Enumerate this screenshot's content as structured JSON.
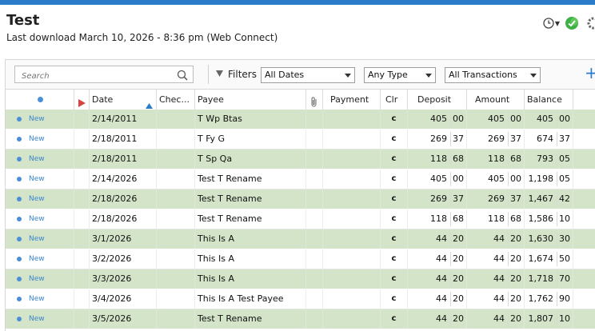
{
  "header": {
    "title": "Test",
    "subtitle": "Last download March 10, 2026 - 8:36 pm (Web Connect)"
  },
  "icons": {
    "history": "clock-icon",
    "sync": "sync-check-icon",
    "settings": "gear-icon"
  },
  "toolbar": {
    "search_placeholder": "Search",
    "filters_label": "Filters",
    "date_filter": "All Dates",
    "type_filter": "Any Type",
    "txn_filter": "All Transactions",
    "add_label": "+"
  },
  "columns": {
    "date": "Date",
    "check": "Chec...",
    "payee": "Payee",
    "payment": "Payment",
    "clr": "Clr",
    "deposit": "Deposit",
    "amount": "Amount",
    "balance": "Balance"
  },
  "rows": [
    {
      "status": "New",
      "date": "2/14/2011",
      "payee": "T Wp Btas",
      "clr": "c",
      "deposit": "405",
      "deposit_c": "00",
      "amount": "405",
      "amount_c": "00",
      "balance": "405",
      "balance_c": "00"
    },
    {
      "status": "New",
      "date": "2/18/2011",
      "payee": "T Fy G",
      "clr": "c",
      "deposit": "269",
      "deposit_c": "37",
      "amount": "269",
      "amount_c": "37",
      "balance": "674",
      "balance_c": "37"
    },
    {
      "status": "New",
      "date": "2/18/2011",
      "payee": "T Sp Qa",
      "clr": "c",
      "deposit": "118",
      "deposit_c": "68",
      "amount": "118",
      "amount_c": "68",
      "balance": "793",
      "balance_c": "05"
    },
    {
      "status": "New",
      "date": "2/14/2026",
      "payee": "Test T Rename",
      "clr": "c",
      "deposit": "405",
      "deposit_c": "00",
      "amount": "405",
      "amount_c": "00",
      "balance": "1,198",
      "balance_c": "05"
    },
    {
      "status": "New",
      "date": "2/18/2026",
      "payee": "Test T Rename",
      "clr": "c",
      "deposit": "269",
      "deposit_c": "37",
      "amount": "269",
      "amount_c": "37",
      "balance": "1,467",
      "balance_c": "42"
    },
    {
      "status": "New",
      "date": "2/18/2026",
      "payee": "Test T Rename",
      "clr": "c",
      "deposit": "118",
      "deposit_c": "68",
      "amount": "118",
      "amount_c": "68",
      "balance": "1,586",
      "balance_c": "10"
    },
    {
      "status": "New",
      "date": "3/1/2026",
      "payee": "This Is A",
      "clr": "c",
      "deposit": "44",
      "deposit_c": "20",
      "amount": "44",
      "amount_c": "20",
      "balance": "1,630",
      "balance_c": "30"
    },
    {
      "status": "New",
      "date": "3/2/2026",
      "payee": "This Is A",
      "clr": "c",
      "deposit": "44",
      "deposit_c": "20",
      "amount": "44",
      "amount_c": "20",
      "balance": "1,674",
      "balance_c": "50"
    },
    {
      "status": "New",
      "date": "3/3/2026",
      "payee": "This Is A",
      "clr": "c",
      "deposit": "44",
      "deposit_c": "20",
      "amount": "44",
      "amount_c": "20",
      "balance": "1,718",
      "balance_c": "70"
    },
    {
      "status": "New",
      "date": "3/4/2026",
      "payee": "This Is A Test Payee",
      "clr": "c",
      "deposit": "44",
      "deposit_c": "20",
      "amount": "44",
      "amount_c": "20",
      "balance": "1,762",
      "balance_c": "90"
    },
    {
      "status": "New",
      "date": "3/5/2026",
      "payee": "Test T Rename",
      "clr": "c",
      "deposit": "44",
      "deposit_c": "20",
      "amount": "44",
      "amount_c": "20",
      "balance": "1,807",
      "balance_c": "10"
    }
  ],
  "colors": {
    "accent": "#2a7bc8",
    "row_alt": "#d4e4c8",
    "new_dot": "#4a90d9",
    "flag": "#d64545",
    "sync_green": "#3cb043"
  }
}
